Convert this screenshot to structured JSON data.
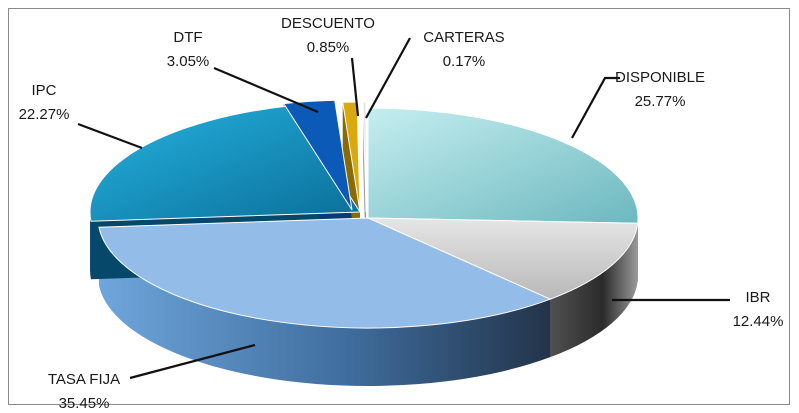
{
  "chart_data": {
    "type": "pie",
    "title": "",
    "slices": [
      {
        "name": "DISPONIBLE",
        "value": 25.77,
        "label": "25.77%",
        "color": "#a9dfe3",
        "exploded": false
      },
      {
        "name": "IBR",
        "value": 12.44,
        "label": "12.44%",
        "color": "#d4d4d4",
        "exploded": false
      },
      {
        "name": "TASA FIJA",
        "value": 35.45,
        "label": "35.45%",
        "color": "#7aaee0",
        "exploded": false
      },
      {
        "name": "IPC",
        "value": 22.27,
        "label": "22.27%",
        "color": "#1fa6d4",
        "exploded": true
      },
      {
        "name": "DTF",
        "value": 3.05,
        "label": "3.05%",
        "color": "#0c5ab8",
        "exploded": true
      },
      {
        "name": "DESCUENTO",
        "value": 0.85,
        "label": "0.85%",
        "color": "#d9a90e",
        "exploded": true
      },
      {
        "name": "CARTERAS",
        "value": 0.17,
        "label": "0.17%",
        "color": "#e3e3e3",
        "exploded": true
      }
    ],
    "legend": "none",
    "style": "3d-pie"
  }
}
